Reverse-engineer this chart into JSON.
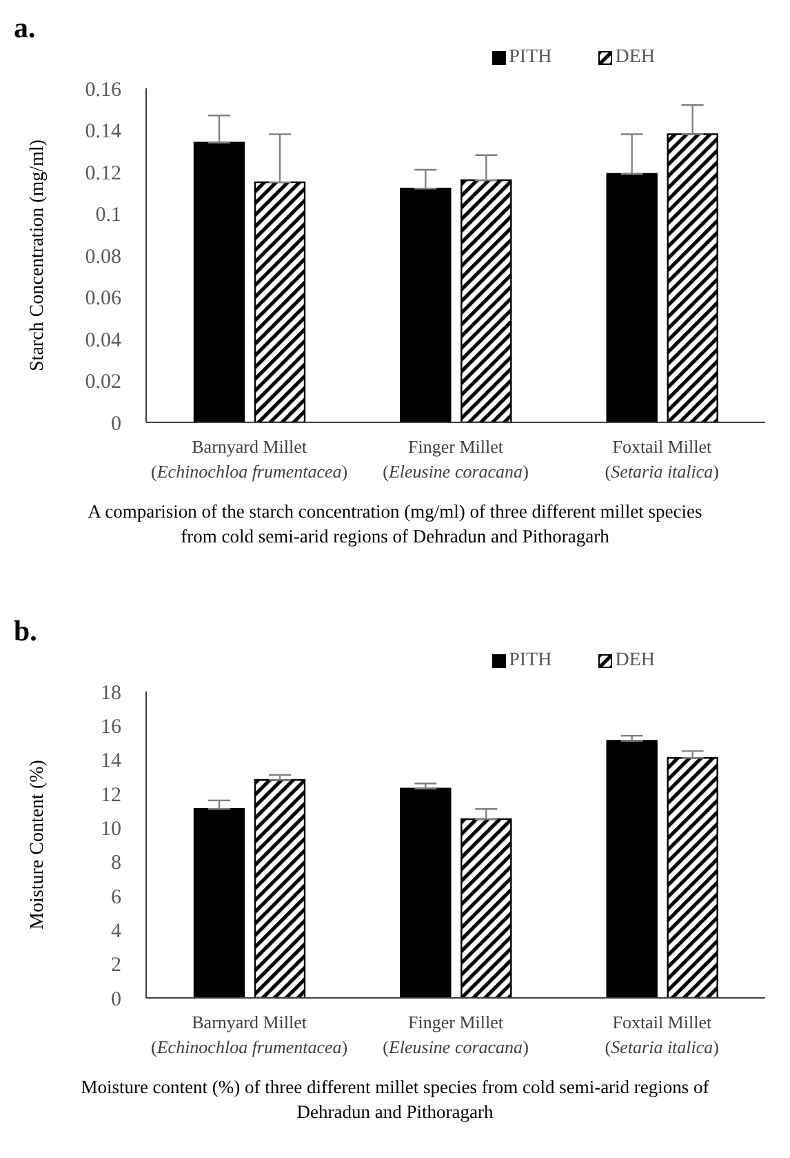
{
  "chart_data": [
    {
      "type": "bar",
      "title": "a.",
      "ylabel": "Starch  Concentration (mg/ml)",
      "categories": [
        "Barnyard Millet (Echinochloa frumentacea)",
        "Finger Millet (Eleusine coracana)",
        "Foxtail Millet (Setaria italica)"
      ],
      "series": [
        {
          "name": "PITH",
          "color": "#000000",
          "values": [
            0.134,
            0.112,
            0.119
          ],
          "errors": [
            [
              0.134,
              0.147
            ],
            [
              0.112,
              0.121
            ],
            [
              0.119,
              0.138
            ]
          ]
        },
        {
          "name": "DEH",
          "color": "#000000",
          "values": [
            0.115,
            0.116,
            0.138
          ],
          "errors": [
            [
              0.115,
              0.138
            ],
            [
              0.116,
              0.128
            ],
            [
              0.138,
              0.152
            ]
          ]
        }
      ],
      "ylim": [
        0,
        0.16
      ],
      "yticks": [
        0,
        0.02,
        0.04,
        0.06,
        0.08,
        0.1,
        0.12,
        0.14,
        0.16
      ],
      "grid": false,
      "legend": "top right",
      "annotations": [
        "A comparision of the starch concentration (mg/ml) of three different millet species from cold semi-arid regions of Dehradun and Pithoragarh"
      ]
    },
    {
      "type": "bar",
      "title": "b.",
      "ylabel": "Moisture Content (%)",
      "categories": [
        "Barnyard Millet (Echinochloa frumentacea)",
        "Finger Millet (Eleusine coracana)",
        "Foxtail Millet (Setaria italica)"
      ],
      "series": [
        {
          "name": "PITH",
          "color": "#000000",
          "values": [
            11.1,
            12.3,
            15.1
          ],
          "errors": [
            [
              11.1,
              11.6
            ],
            [
              12.3,
              12.6
            ],
            [
              15.1,
              15.4
            ]
          ]
        },
        {
          "name": "DEH",
          "color": "#000000",
          "values": [
            12.8,
            10.5,
            14.1
          ],
          "errors": [
            [
              12.8,
              13.1
            ],
            [
              10.5,
              11.1
            ],
            [
              14.1,
              14.5
            ]
          ]
        }
      ],
      "ylim": [
        0,
        18
      ],
      "yticks": [
        0,
        2,
        4,
        6,
        8,
        10,
        12,
        14,
        16,
        18
      ],
      "grid": false,
      "legend": "top right",
      "annotations": [
        "Moisture content (%) of three different millet species from cold semi-arid regions of Dehradun and Pithoragarh"
      ]
    }
  ]
}
